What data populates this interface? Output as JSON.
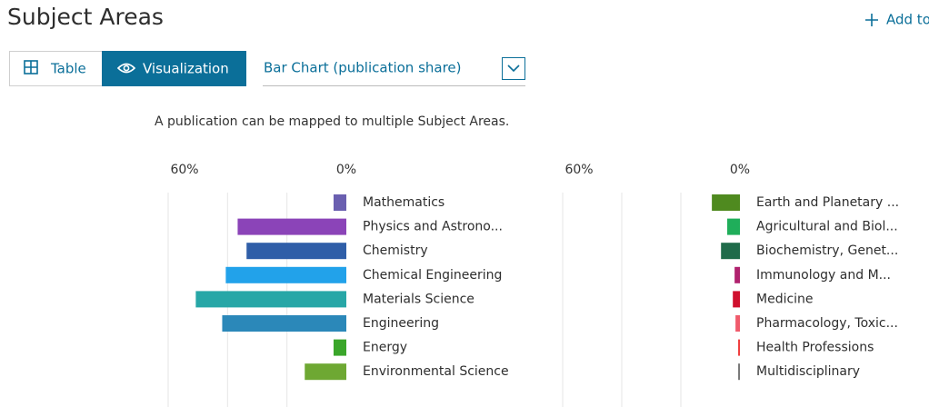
{
  "header": {
    "title": "Subject Areas",
    "add_button": "Add to"
  },
  "view_tabs": [
    "Table",
    "Visualization"
  ],
  "dropdown": {
    "selected": "Bar Chart (publication share)"
  },
  "note": "A publication can be mapped to multiple Subject Areas.",
  "chart_data": [
    {
      "type": "bar",
      "orientation": "horizontal",
      "categories": [
        "Mathematics",
        "Physics and Astrono...",
        "Chemistry",
        "Chemical Engineering",
        "Materials Science",
        "Engineering",
        "Energy",
        "Environmental Science"
      ],
      "values": [
        4.3,
        36.6,
        33.6,
        40.6,
        50.7,
        41.8,
        4.3,
        14.0
      ],
      "colors": [
        "#6a5fb0",
        "#8b44b8",
        "#2f5ea8",
        "#22a2ea",
        "#27a7a7",
        "#2b88b9",
        "#3aa62a",
        "#6ea833"
      ],
      "xlim": [
        60,
        0
      ],
      "xticks": [
        {
          "value": 60,
          "label": "60%"
        },
        {
          "value": 0,
          "label": "0%"
        }
      ],
      "xgrid": [
        60,
        40,
        20
      ]
    },
    {
      "type": "bar",
      "orientation": "horizontal",
      "categories": [
        "Earth and Planetary ...",
        "Agricultural and Biol...",
        "Biochemistry, Genet...",
        "Immunology and M...",
        "Medicine",
        "Pharmacology, Toxic...",
        "Health Professions",
        "Multidisciplinary"
      ],
      "values": [
        9.5,
        4.3,
        6.4,
        1.8,
        2.4,
        1.5,
        0.6,
        0.6
      ],
      "colors": [
        "#4f8a1f",
        "#1fae5a",
        "#1f6b4a",
        "#b0226e",
        "#d0102e",
        "#f05a6b",
        "#f03c3c",
        "#777777"
      ],
      "xlim": [
        60,
        0
      ],
      "xticks": [
        {
          "value": 60,
          "label": "60%"
        },
        {
          "value": 0,
          "label": "0%"
        }
      ],
      "xgrid": [
        60,
        40,
        20
      ]
    }
  ]
}
